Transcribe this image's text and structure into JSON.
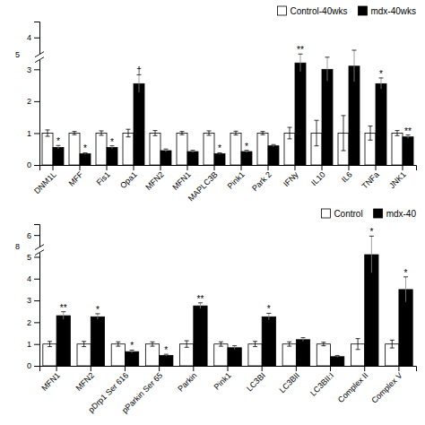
{
  "chart_data": [
    {
      "type": "bar",
      "categories": [
        "DNM1L",
        "MFF",
        "Fis1",
        "Opa1",
        "MFN2",
        "MFN1",
        "MAPLC3B",
        "Pink1",
        "Park 2",
        "IFNy",
        "IL10",
        "IL6",
        "TNFa",
        "JNK1"
      ],
      "series": [
        {
          "name": "Control-40wks",
          "color": "white",
          "values": [
            1.0,
            1.0,
            1.0,
            1.0,
            1.0,
            1.0,
            1.0,
            1.0,
            1.0,
            1.0,
            1.0,
            1.0,
            1.0,
            1.0
          ],
          "errors": [
            0.1,
            0.05,
            0.07,
            0.12,
            0.08,
            0.05,
            0.07,
            0.06,
            0.05,
            0.18,
            0.4,
            0.55,
            0.22,
            0.08
          ]
        },
        {
          "name": "mdx-40wks",
          "color": "black",
          "values": [
            0.55,
            0.35,
            0.55,
            2.55,
            0.45,
            0.42,
            0.35,
            0.42,
            0.6,
            3.2,
            3.0,
            3.1,
            2.55,
            0.88
          ],
          "errors": [
            0.06,
            0.03,
            0.05,
            0.28,
            0.05,
            0.04,
            0.03,
            0.04,
            0.04,
            0.28,
            0.38,
            0.5,
            0.18,
            0.06
          ]
        }
      ],
      "ylim": [
        0,
        4.5
      ],
      "yticks": [
        0,
        1,
        2,
        3,
        4
      ],
      "grid": false,
      "legend": "upper right",
      "annotations": [
        {
          "text": "5",
          "y": 3.3
        },
        {
          "text": "*",
          "x": "DNM1L",
          "series": "mdx-40wks"
        },
        {
          "text": "*",
          "x": "MFF",
          "series": "mdx-40wks"
        },
        {
          "text": "*",
          "x": "Fis1",
          "series": "mdx-40wks"
        },
        {
          "text": "†",
          "x": "Opa1",
          "series": "mdx-40wks"
        },
        {
          "text": "*",
          "x": "MAPLC3B",
          "series": "mdx-40wks"
        },
        {
          "text": "*",
          "x": "Pink1",
          "series": "mdx-40wks"
        },
        {
          "text": "**",
          "x": "IFNy",
          "series": "mdx-40wks"
        },
        {
          "text": "*",
          "x": "TNFa",
          "series": "mdx-40wks"
        },
        {
          "text": "**",
          "x": "JNK1",
          "series": "mdx-40wks"
        }
      ]
    },
    {
      "type": "bar",
      "categories": [
        "MFN1",
        "MFN2",
        "pDrp1 Ser 616",
        "pParkin Ser 65",
        "Parkin",
        "Pink1",
        "LC3BI",
        "LC3BII",
        "LC3BII:I",
        "Complex II",
        "Complex V"
      ],
      "series": [
        {
          "name": "Control",
          "color": "white",
          "values": [
            1.0,
            1.0,
            1.0,
            1.0,
            1.0,
            1.0,
            1.0,
            1.0,
            1.0,
            1.0,
            1.0
          ],
          "errors": [
            0.12,
            0.12,
            0.1,
            0.1,
            0.15,
            0.1,
            0.12,
            0.1,
            0.08,
            0.25,
            0.18
          ]
        },
        {
          "name": "mdx-40",
          "color": "black",
          "values": [
            2.3,
            2.25,
            0.65,
            0.48,
            2.75,
            0.83,
            2.25,
            1.2,
            0.42,
            5.1,
            3.5
          ],
          "errors": [
            0.18,
            0.14,
            0.07,
            0.05,
            0.14,
            0.09,
            0.16,
            0.09,
            0.05,
            0.85,
            0.58
          ]
        }
      ],
      "ylim": [
        0,
        6.5
      ],
      "yticks": [
        0,
        1,
        2,
        3,
        4,
        5,
        6
      ],
      "grid": false,
      "legend": "upper right",
      "annotations": [
        {
          "text": "8",
          "y": 5.2
        },
        {
          "text": "**",
          "x": "MFN1",
          "series": "mdx-40"
        },
        {
          "text": "*",
          "x": "MFN2",
          "series": "mdx-40"
        },
        {
          "text": "*",
          "x": "pDrp1 Ser 616",
          "series": "mdx-40"
        },
        {
          "text": "*",
          "x": "pParkin Ser 65",
          "series": "mdx-40"
        },
        {
          "text": "**",
          "x": "Parkin",
          "series": "mdx-40"
        },
        {
          "text": "*",
          "x": "LC3BI",
          "series": "mdx-40"
        },
        {
          "text": "*",
          "x": "Complex II",
          "series": "mdx-40"
        },
        {
          "text": "*",
          "x": "Complex V",
          "series": "mdx-40"
        }
      ]
    }
  ]
}
